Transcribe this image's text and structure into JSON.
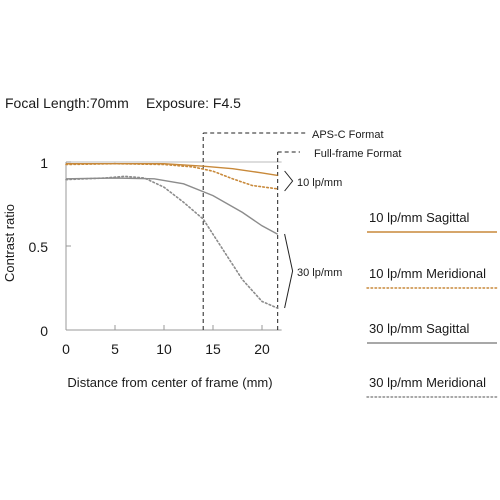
{
  "header": {
    "focal_length": "Focal Length:70mm",
    "exposure": "Exposure: F4.5"
  },
  "chart_data": {
    "type": "line",
    "xlabel": "Distance from center of frame (mm)",
    "ylabel": "Contrast ratio",
    "xlim": [
      0,
      22
    ],
    "ylim": [
      0,
      1
    ],
    "x_ticks": [
      "0",
      "5",
      "10",
      "15",
      "20"
    ],
    "y_ticks": [
      "0",
      "0.5",
      "1"
    ],
    "grid": false,
    "format_markers": [
      {
        "label": "APS-C Format",
        "x": 14
      },
      {
        "label": "Full-frame Format",
        "x": 21.6
      }
    ],
    "group_labels": [
      "10 lp/mm",
      "30 lp/mm"
    ],
    "colors": {
      "ten": "#c8893a",
      "thirty": "#8c8c8c"
    },
    "series": [
      {
        "name": "10 lp/mm Sagittal",
        "style": "solid",
        "color": "#c8893a",
        "points": [
          [
            0,
            0.99
          ],
          [
            5,
            0.99
          ],
          [
            10,
            0.99
          ],
          [
            14,
            0.975
          ],
          [
            17,
            0.96
          ],
          [
            20,
            0.935
          ],
          [
            21.6,
            0.92
          ]
        ]
      },
      {
        "name": "10 lp/mm Meridional",
        "style": "dotted",
        "color": "#c8893a",
        "points": [
          [
            0,
            0.985
          ],
          [
            5,
            0.99
          ],
          [
            10,
            0.985
          ],
          [
            13,
            0.97
          ],
          [
            15,
            0.945
          ],
          [
            17,
            0.9
          ],
          [
            19,
            0.86
          ],
          [
            21.6,
            0.84
          ]
        ]
      },
      {
        "name": "30 lp/mm Sagittal",
        "style": "solid",
        "color": "#8c8c8c",
        "points": [
          [
            0,
            0.9
          ],
          [
            5,
            0.905
          ],
          [
            9,
            0.9
          ],
          [
            12,
            0.87
          ],
          [
            15,
            0.8
          ],
          [
            18,
            0.7
          ],
          [
            20,
            0.62
          ],
          [
            21.6,
            0.57
          ]
        ]
      },
      {
        "name": "30 lp/mm Meridional",
        "style": "dotted",
        "color": "#8c8c8c",
        "points": [
          [
            0,
            0.895
          ],
          [
            4,
            0.905
          ],
          [
            6,
            0.915
          ],
          [
            8,
            0.905
          ],
          [
            10,
            0.85
          ],
          [
            12,
            0.76
          ],
          [
            14,
            0.66
          ],
          [
            16,
            0.48
          ],
          [
            18,
            0.3
          ],
          [
            20,
            0.17
          ],
          [
            21.6,
            0.13
          ]
        ]
      }
    ]
  }
}
